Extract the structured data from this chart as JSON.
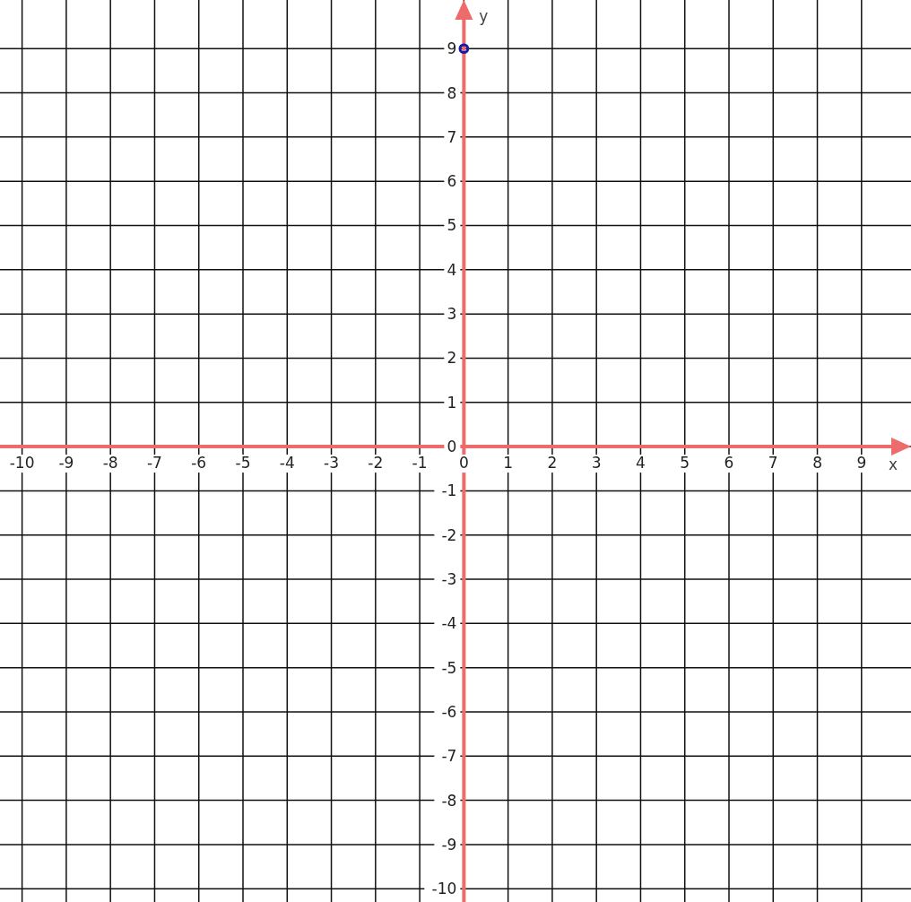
{
  "chart_data": {
    "type": "scatter",
    "xlabel": "x",
    "ylabel": "y",
    "xlim": [
      -10.5,
      10.12
    ],
    "ylim": [
      -10.3,
      10.1
    ],
    "xticks": [
      -10,
      -9,
      -8,
      -7,
      -6,
      -5,
      -4,
      -3,
      -2,
      -1,
      0,
      1,
      2,
      3,
      4,
      5,
      6,
      7,
      8,
      9
    ],
    "yticks": [
      -10,
      -9,
      -8,
      -7,
      -6,
      -5,
      -4,
      -3,
      -2,
      -1,
      0,
      1,
      2,
      3,
      4,
      5,
      6,
      7,
      8,
      9
    ],
    "grid": true,
    "marker": "circle",
    "series": [
      {
        "color": "#1a1aa8",
        "x": [
          0
        ],
        "values": [
          9
        ]
      }
    ]
  }
}
